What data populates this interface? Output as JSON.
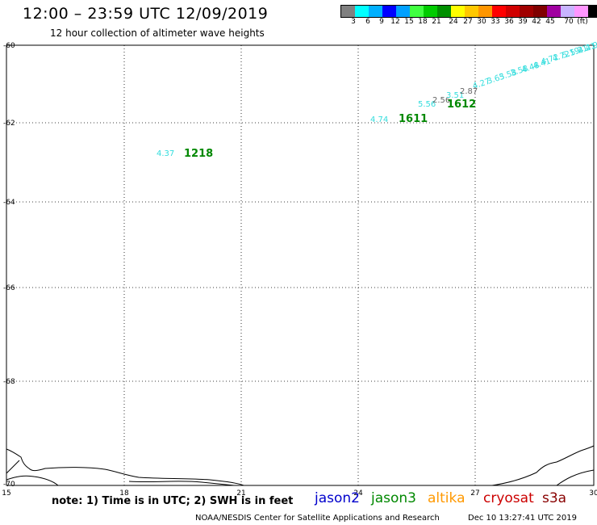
{
  "header": {
    "title": "12:00 – 23:59 UTC 12/09/2019",
    "subtitle": "12 hour collection of altimeter wave heights"
  },
  "colorbar": {
    "colors": [
      "#808080",
      "#00ffff",
      "#00b0ff",
      "#0000ff",
      "#00a0ff",
      "#40ff40",
      "#00cc00",
      "#009000",
      "#ffff00",
      "#ffc800",
      "#ff9600",
      "#ff0000",
      "#d00000",
      "#a00000",
      "#800000",
      "#a000a0",
      "#c8b4ff",
      "#ff96ff",
      "#000000"
    ],
    "labels": [
      "3",
      "6",
      "9",
      "12",
      "15",
      "18",
      "21",
      "24",
      "27",
      "30",
      "33",
      "36",
      "39",
      "42",
      "45",
      "70",
      "(ft)"
    ]
  },
  "axes": {
    "lat_ticks": [
      "-60",
      "-62",
      "-64",
      "-66",
      "-68",
      "-70"
    ],
    "lon_ticks": [
      "15",
      "18",
      "21",
      "24",
      "27",
      "30"
    ]
  },
  "observations": [
    {
      "text": "4.37",
      "color": "#33dddd"
    },
    {
      "text": "1218",
      "color": "#008800"
    },
    {
      "text": "4.74",
      "color": "#33dddd"
    },
    {
      "text": "1611",
      "color": "#008800"
    },
    {
      "text": "5.56",
      "color": "#33dddd"
    },
    {
      "text": "2.56",
      "color": "#666666"
    },
    {
      "text": "3.51",
      "color": "#33dddd"
    },
    {
      "text": "1612",
      "color": "#008800"
    },
    {
      "text": "2.87",
      "color": "#666666"
    },
    {
      "text": "4.27",
      "color": "#33dddd"
    },
    {
      "text": "3.65",
      "color": "#33dddd"
    },
    {
      "text": "3.58",
      "color": "#33dddd"
    },
    {
      "text": "3.58",
      "color": "#33dddd"
    },
    {
      "text": "4.48",
      "color": "#33dddd"
    },
    {
      "text": "4.41",
      "color": "#33dddd"
    },
    {
      "text": "4.72",
      "color": "#33dddd"
    },
    {
      "text": "4.72",
      "color": "#33dddd"
    },
    {
      "text": "5.19",
      "color": "#33dddd"
    },
    {
      "text": "5.21",
      "color": "#33dddd"
    },
    {
      "text": "4.21",
      "color": "#33dddd"
    },
    {
      "text": "4.9",
      "color": "#33dddd"
    }
  ],
  "footer": {
    "note": "note: 1) Time is in UTC; 2) SWH is in feet",
    "satellites": [
      {
        "name": "jason2",
        "color": "#0000cc"
      },
      {
        "name": "jason3",
        "color": "#008800"
      },
      {
        "name": "altika",
        "color": "#ff9900"
      },
      {
        "name": "cryosat",
        "color": "#cc0000"
      },
      {
        "name": "s3a",
        "color": "#880000"
      }
    ],
    "credit": "NOAA/NESDIS Center for Satellite Applications and Research",
    "timestamp": "Dec 10 13:27:41 UTC 2019"
  }
}
